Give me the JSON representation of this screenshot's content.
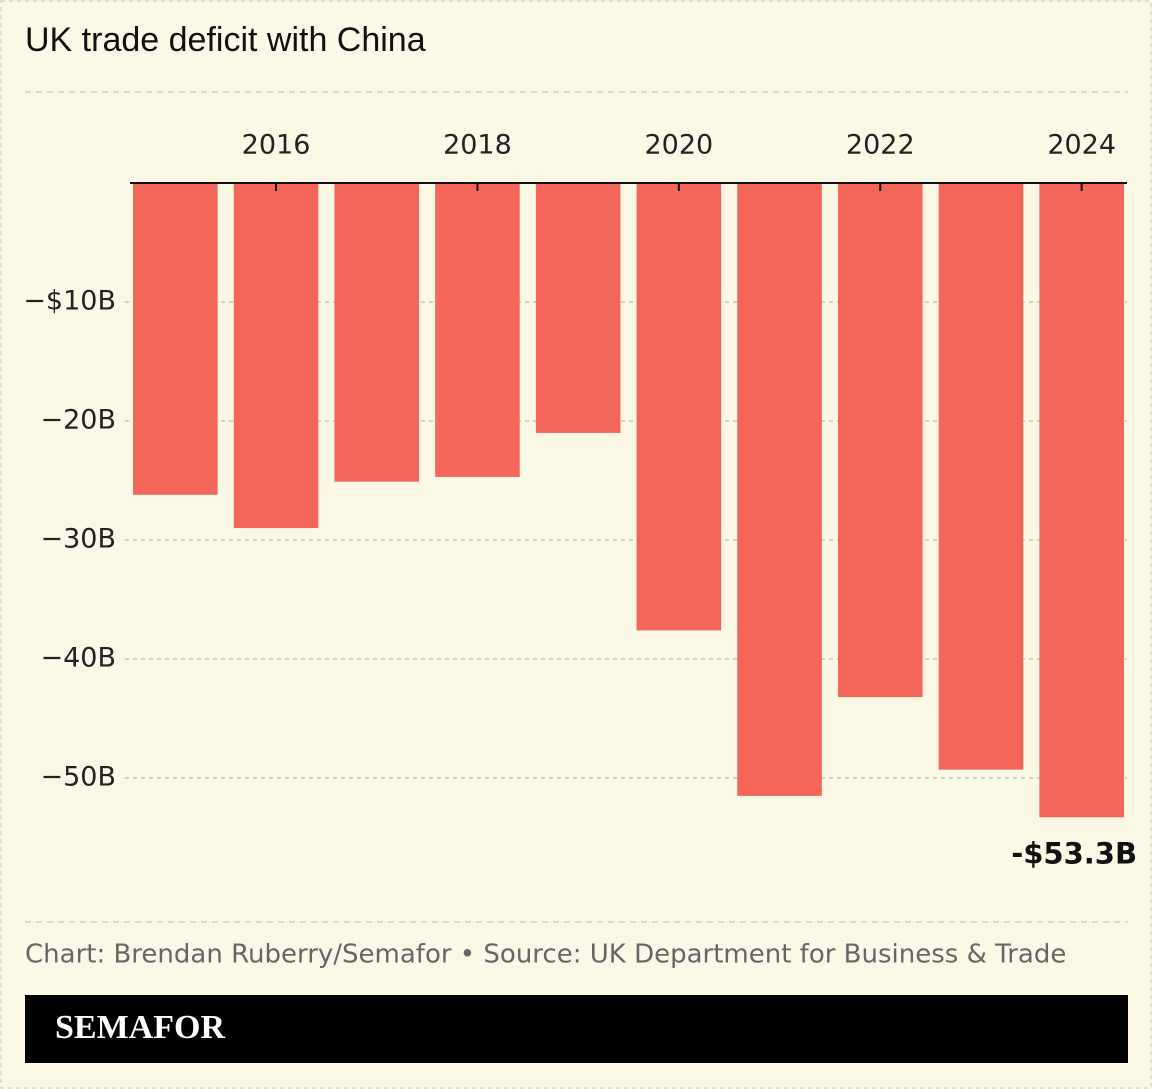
{
  "chart_data": {
    "type": "bar",
    "title": "UK trade deficit with China",
    "x": [
      2015,
      2016,
      2017,
      2018,
      2019,
      2020,
      2021,
      2022,
      2023,
      2024
    ],
    "values": [
      -26.2,
      -29.0,
      -25.1,
      -24.7,
      -21.0,
      -37.6,
      -51.5,
      -43.2,
      -49.3,
      -53.3
    ],
    "value_labels": [
      null,
      null,
      null,
      null,
      null,
      null,
      null,
      null,
      null,
      "-$53.3B"
    ],
    "color": "#f4665a",
    "xlim": [
      2014.55,
      2024.45
    ],
    "xticks": [
      2016,
      2018,
      2020,
      2022,
      2024
    ],
    "ylim": [
      -60,
      0
    ],
    "yticks": [
      {
        "value": -10,
        "label": "−$10B"
      },
      {
        "value": -20,
        "label": "−20B"
      },
      {
        "value": -30,
        "label": "−30B"
      },
      {
        "value": -40,
        "label": "−40B"
      },
      {
        "value": -50,
        "label": "−50B"
      }
    ],
    "grid": true,
    "source": "Chart: Brendan Ruberry/Semafor • Source: UK Department for Business & Trade",
    "brand": "SEMAFOR"
  }
}
